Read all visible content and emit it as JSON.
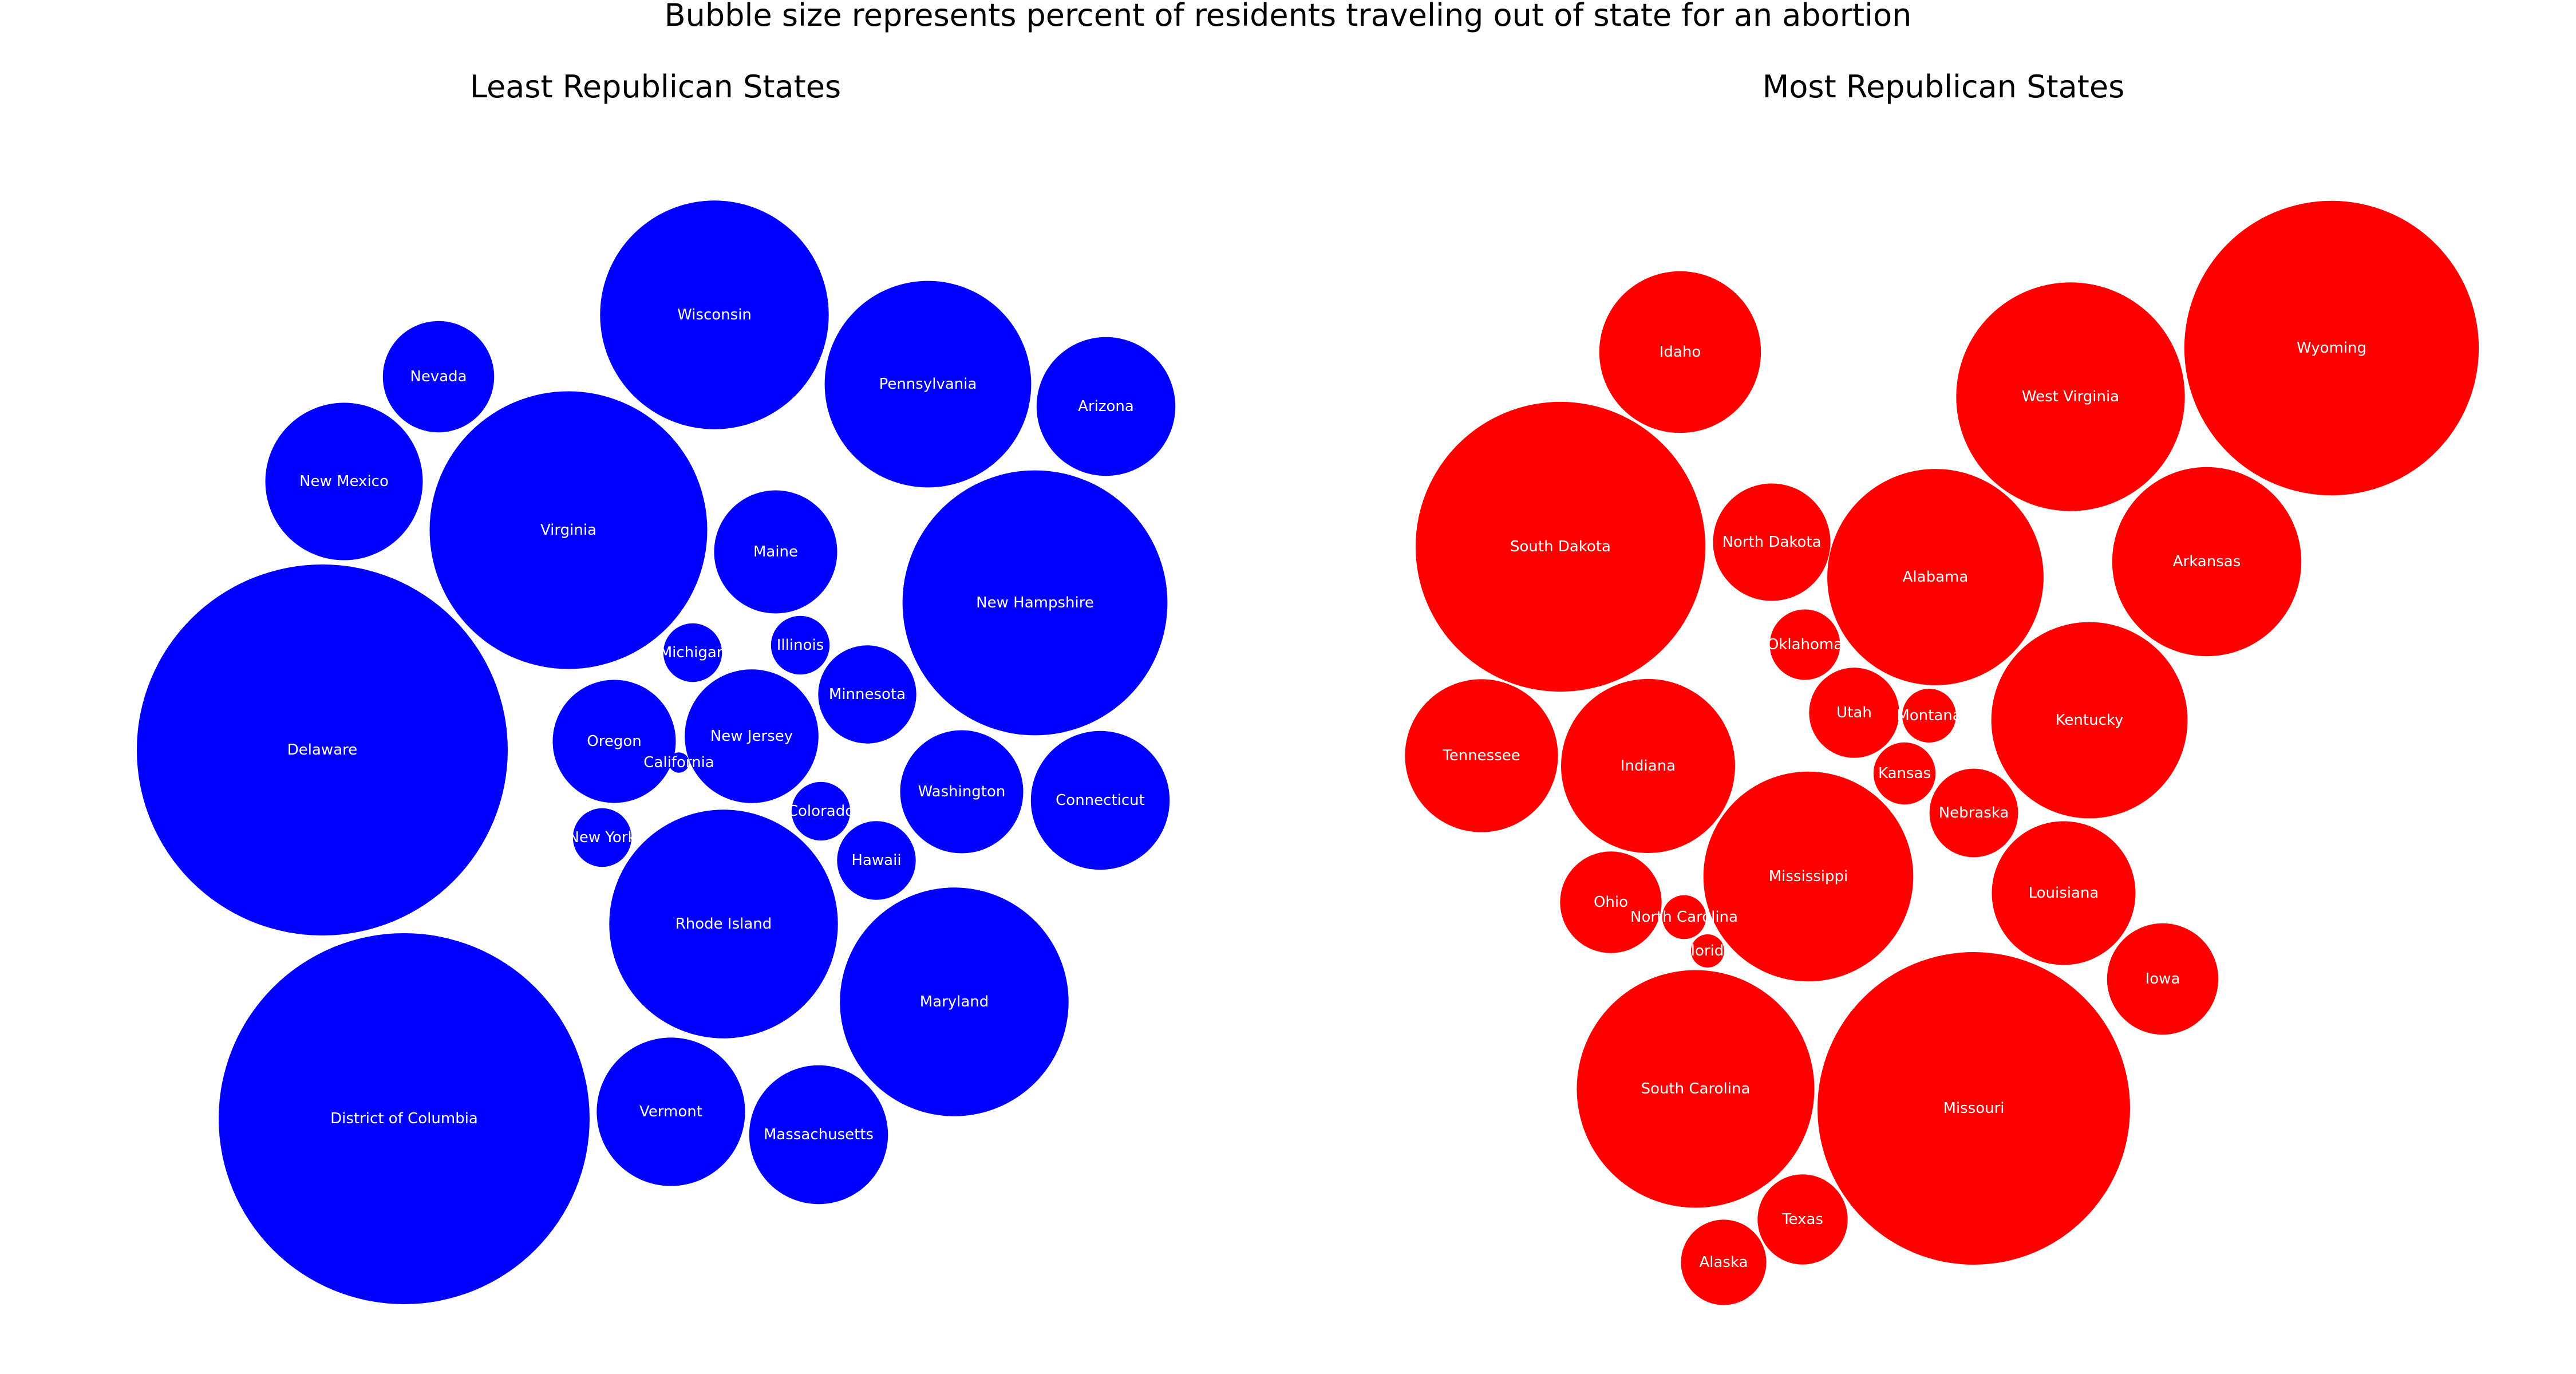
{
  "figure": {
    "suptitle": "Bubble size represents percent of residents traveling out of state for an abortion"
  },
  "chart_data": [
    {
      "type": "bubble",
      "title": "Least Republican States",
      "color": "#0000ff",
      "label_color": "#ffffff",
      "series": [
        {
          "label": "Delaware",
          "size": 100
        },
        {
          "label": "District of Columbia",
          "size": 100
        },
        {
          "label": "Virginia",
          "size": 56
        },
        {
          "label": "New Hampshire",
          "size": 51
        },
        {
          "label": "Wisconsin",
          "size": 38
        },
        {
          "label": "Rhode Island",
          "size": 38
        },
        {
          "label": "Maryland",
          "size": 38
        },
        {
          "label": "Pennsylvania",
          "size": 31
        },
        {
          "label": "New Mexico",
          "size": 18
        },
        {
          "label": "Vermont",
          "size": 16
        },
        {
          "label": "Arizona",
          "size": 14
        },
        {
          "label": "Connecticut",
          "size": 14
        },
        {
          "label": "Massachusetts",
          "size": 14
        },
        {
          "label": "New Jersey",
          "size": 13
        },
        {
          "label": "Oregon",
          "size": 11
        },
        {
          "label": "Maine",
          "size": 11
        },
        {
          "label": "Washington",
          "size": 11
        },
        {
          "label": "Nevada",
          "size": 9
        },
        {
          "label": "Minnesota",
          "size": 7
        },
        {
          "label": "Hawaii",
          "size": 4.5
        },
        {
          "label": "Colorado",
          "size": 2.5
        },
        {
          "label": "Illinois",
          "size": 2.5
        },
        {
          "label": "Michigan",
          "size": 2.5
        },
        {
          "label": "New York",
          "size": 2.5
        },
        {
          "label": "California",
          "size": 0.3
        }
      ]
    },
    {
      "type": "bubble",
      "title": "Most Republican States",
      "color": "#ff0000",
      "label_color": "#ffffff",
      "series": [
        {
          "label": "Wyoming",
          "size": 63
        },
        {
          "label": "Missouri",
          "size": 71
        },
        {
          "label": "South Dakota",
          "size": 61
        },
        {
          "label": "South Carolina",
          "size": 41
        },
        {
          "label": "Mississippi",
          "size": 32
        },
        {
          "label": "West Virginia",
          "size": 38
        },
        {
          "label": "Alabama",
          "size": 34
        },
        {
          "label": "Kentucky",
          "size": 28
        },
        {
          "label": "Indiana",
          "size": 22
        },
        {
          "label": "Louisiana",
          "size": 15
        },
        {
          "label": "Arkansas",
          "size": 26
        },
        {
          "label": "Idaho",
          "size": 19
        },
        {
          "label": "Tennessee",
          "size": 17
        },
        {
          "label": "North Dakota",
          "size": 10
        },
        {
          "label": "Ohio",
          "size": 7.5
        },
        {
          "label": "Iowa",
          "size": 9
        },
        {
          "label": "Utah",
          "size": 5.9
        },
        {
          "label": "Nebraska",
          "size": 5.7
        },
        {
          "label": "Texas",
          "size": 5.9
        },
        {
          "label": "Alaska",
          "size": 5.3
        },
        {
          "label": "Oklahoma",
          "size": 3.6
        },
        {
          "label": "Kansas",
          "size": 2.8
        },
        {
          "label": "Montana",
          "size": 2.1
        },
        {
          "label": "North Carolina",
          "size": 1.4
        },
        {
          "label": "Florida",
          "size": 0.8
        }
      ]
    }
  ]
}
